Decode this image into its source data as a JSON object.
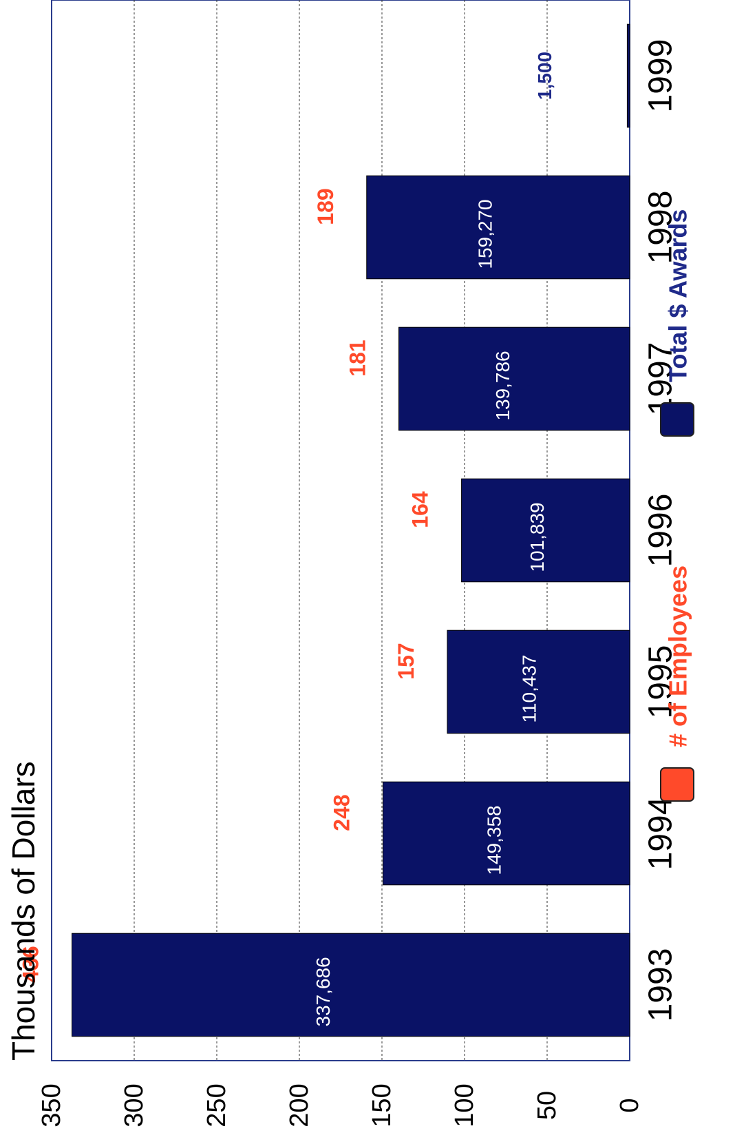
{
  "chart_data": {
    "type": "bar",
    "orientation": "rotated 90° clockwise",
    "ylabel": "Thousands of Dollars",
    "ylim": [
      0,
      350
    ],
    "yticks": [
      0,
      50,
      100,
      150,
      200,
      250,
      300,
      350
    ],
    "grid": true,
    "categories": [
      "1993",
      "1994",
      "1995",
      "1996",
      "1997",
      "1998",
      "1999"
    ],
    "series": [
      {
        "name": "Total $ Awards",
        "color": "#0a1266",
        "values": [
          337.686,
          149.358,
          110.437,
          101.839,
          139.786,
          159.27,
          1.5
        ],
        "labels": [
          "337,686",
          "149,358",
          "110,437",
          "101,839",
          "139,786",
          "159,270",
          "1,500"
        ]
      },
      {
        "name": "# of Employees",
        "color": "#ff4a2a",
        "labels": [
          "436",
          "248",
          "157",
          "164",
          "181",
          "189",
          ""
        ]
      }
    ],
    "legend_position": "bottom"
  }
}
